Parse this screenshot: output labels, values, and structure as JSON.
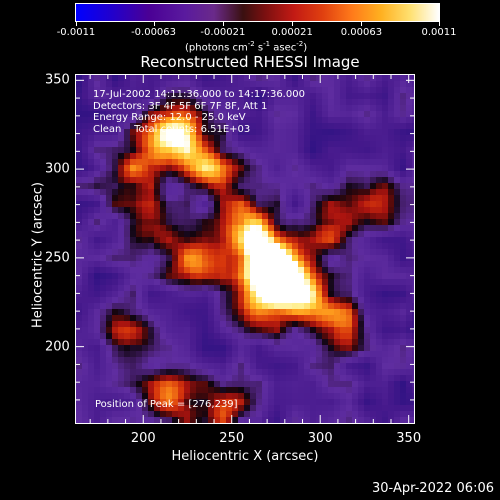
{
  "chart_data": {
    "type": "heatmap",
    "title": "Reconstructed RHESSI Image",
    "xlabel": "Heliocentric X (arcsec)",
    "ylabel": "Heliocentric Y (arcsec)",
    "xlim": [
      162,
      353
    ],
    "ylim": [
      157,
      353
    ],
    "x_ticks": [
      "200",
      "250",
      "300",
      "350"
    ],
    "x_tick_values": [
      200,
      250,
      300,
      350
    ],
    "y_ticks": [
      "200",
      "250",
      "300",
      "350"
    ],
    "y_tick_values": [
      200,
      250,
      300,
      350
    ],
    "colorbar": {
      "ticks": [
        "-0.0011",
        "-0.00063",
        "-0.00021",
        "0.00021",
        "0.00063",
        "0.0011"
      ],
      "tick_values": [
        -0.0011,
        -0.00063,
        -0.00021,
        0.00021,
        0.00063,
        0.0011
      ],
      "units_main": "(photons cm",
      "units_exp1": "-2",
      "units_mid1": " s",
      "units_exp2": "-1",
      "units_mid2": " asec",
      "units_exp3": "-2",
      "units_end": ")"
    },
    "annotations": {
      "time_range": "17-Jul-2002 14:11:36.000 to 14:17:36.000",
      "detectors": "Detectors: 3F 4F 5F 6F 7F 8F, Att 1",
      "energy": "Energy Range: 12.0 - 25.0 keV",
      "clean": "Clean    Total counts: 6.51E+03",
      "peak": "Position of Peak = [276,239]"
    },
    "peak": [
      276,
      239
    ],
    "sources": [
      {
        "x": 276,
        "y": 239,
        "value": 0.0011
      },
      {
        "x": 268,
        "y": 250,
        "value": 0.00095
      },
      {
        "x": 290,
        "y": 227,
        "value": 0.00085
      },
      {
        "x": 258,
        "y": 268,
        "value": 0.0008
      },
      {
        "x": 238,
        "y": 300,
        "value": 0.0007
      },
      {
        "x": 222,
        "y": 323,
        "value": 0.00063
      },
      {
        "x": 208,
        "y": 311,
        "value": 0.0006
      },
      {
        "x": 230,
        "y": 248,
        "value": 0.0006
      },
      {
        "x": 205,
        "y": 268,
        "value": 0.00045
      },
      {
        "x": 262,
        "y": 222,
        "value": 0.0006
      },
      {
        "x": 310,
        "y": 212,
        "value": 0.0005
      },
      {
        "x": 215,
        "y": 170,
        "value": 0.0005
      },
      {
        "x": 245,
        "y": 166,
        "value": 0.0004
      },
      {
        "x": 305,
        "y": 268,
        "value": 0.00035
      },
      {
        "x": 330,
        "y": 282,
        "value": 0.0002
      },
      {
        "x": 190,
        "y": 295,
        "value": 0.0003
      },
      {
        "x": 192,
        "y": 205,
        "value": 0.0003
      }
    ],
    "grid": false
  },
  "footer": {
    "timestamp": "30-Apr-2022 06:06"
  }
}
